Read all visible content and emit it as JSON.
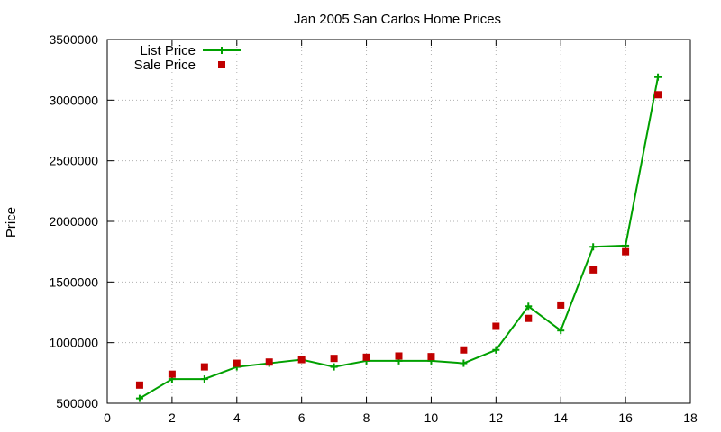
{
  "chart_data": {
    "type": "line",
    "title": "Jan 2005 San Carlos Home Prices",
    "xlabel": "",
    "ylabel": "Price",
    "xlim": [
      0,
      18
    ],
    "ylim": [
      500000,
      3500000
    ],
    "xticks": [
      0,
      2,
      4,
      6,
      8,
      10,
      12,
      14,
      16,
      18
    ],
    "yticks": [
      500000,
      1000000,
      1500000,
      2000000,
      2500000,
      3000000,
      3500000
    ],
    "grid": true,
    "legend_position": "top-left",
    "series": [
      {
        "name": "List Price",
        "style": "line+points",
        "marker": "plus",
        "color": "#00a000",
        "x": [
          1,
          2,
          3,
          4,
          5,
          6,
          7,
          8,
          9,
          10,
          11,
          12,
          13,
          14,
          15,
          16,
          17
        ],
        "y": [
          540000,
          700000,
          700000,
          800000,
          830000,
          860000,
          800000,
          850000,
          850000,
          850000,
          830000,
          940000,
          1300000,
          1100000,
          1790000,
          1800000,
          3190000
        ]
      },
      {
        "name": "Sale Price",
        "style": "points",
        "marker": "square",
        "color": "#c00000",
        "x": [
          1,
          2,
          3,
          4,
          5,
          6,
          7,
          8,
          9,
          10,
          11,
          12,
          13,
          14,
          15,
          16,
          17
        ],
        "y": [
          650000,
          740000,
          800000,
          830000,
          840000,
          860000,
          870000,
          880000,
          890000,
          885000,
          940000,
          1135000,
          1200000,
          1310000,
          1600000,
          1750000,
          3045000
        ]
      }
    ]
  }
}
